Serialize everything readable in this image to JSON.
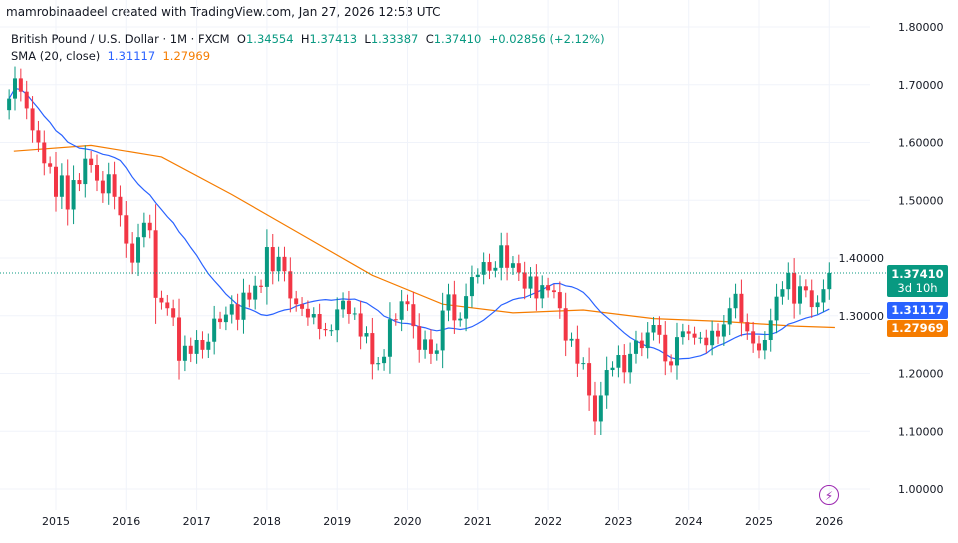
{
  "attribution": "mamrobinaadeel created with TradingView.com, Jan 27, 2026 12:53 UTC",
  "legend": {
    "symbol": "British Pound / U.S. Dollar · 1M · FXCM",
    "o_label": "O",
    "o": "1.34554",
    "h_label": "H",
    "h": "1.37413",
    "l_label": "L",
    "l": "1.33387",
    "c_label": "C",
    "c": "1.37410",
    "change": "+0.02856 (+2.12%)",
    "sma_label": "SMA (20, close)",
    "sma1": "1.31117",
    "sma2": "1.27969"
  },
  "tags": {
    "price": "1.37410",
    "countdown": "3d 10h",
    "sma1": "1.31117",
    "sma2": "1.27969"
  },
  "icons": {
    "alert": "lightning-icon"
  },
  "colors": {
    "up": "#089981",
    "down": "#f23645",
    "sma1": "#2962ff",
    "sma2": "#f57c00"
  },
  "chart_data": {
    "type": "candlestick",
    "start": "2014-05",
    "interval": "1M",
    "closes": [
      1.676,
      1.711,
      1.688,
      1.659,
      1.621,
      1.6,
      1.564,
      1.558,
      1.506,
      1.543,
      1.484,
      1.535,
      1.528,
      1.572,
      1.561,
      1.534,
      1.512,
      1.545,
      1.506,
      1.474,
      1.425,
      1.392,
      1.436,
      1.461,
      1.448,
      1.331,
      1.323,
      1.313,
      1.297,
      1.222,
      1.248,
      1.234,
      1.258,
      1.241,
      1.255,
      1.295,
      1.289,
      1.302,
      1.32,
      1.293,
      1.34,
      1.328,
      1.352,
      1.35,
      1.419,
      1.377,
      1.402,
      1.377,
      1.33,
      1.32,
      1.312,
      1.297,
      1.303,
      1.277,
      1.275,
      1.275,
      1.311,
      1.326,
      1.303,
      1.304,
      1.264,
      1.27,
      1.216,
      1.218,
      1.229,
      1.294,
      1.293,
      1.325,
      1.32,
      1.282,
      1.241,
      1.259,
      1.234,
      1.24,
      1.309,
      1.337,
      1.292,
      1.295,
      1.334,
      1.367,
      1.371,
      1.393,
      1.378,
      1.383,
      1.422,
      1.383,
      1.391,
      1.375,
      1.347,
      1.368,
      1.33,
      1.353,
      1.344,
      1.341,
      1.313,
      1.257,
      1.26,
      1.217,
      1.218,
      1.162,
      1.117,
      1.162,
      1.206,
      1.21,
      1.232,
      1.202,
      1.234,
      1.257,
      1.244,
      1.271,
      1.284,
      1.267,
      1.221,
      1.214,
      1.263,
      1.273,
      1.269,
      1.262,
      1.262,
      1.249,
      1.274,
      1.264,
      1.285,
      1.313,
      1.338,
      1.289,
      1.273,
      1.252,
      1.24,
      1.258,
      1.292,
      1.333,
      1.346,
      1.374,
      1.321,
      1.351,
      1.344,
      1.315,
      1.323,
      1.346,
      1.3741
    ],
    "sma2_points": [
      [
        2014.4,
        1.585
      ],
      [
        2015.5,
        1.595
      ],
      [
        2016.5,
        1.575
      ],
      [
        2017.5,
        1.51
      ],
      [
        2018.5,
        1.44
      ],
      [
        2019.5,
        1.37
      ],
      [
        2020.5,
        1.32
      ],
      [
        2021.5,
        1.305
      ],
      [
        2022.5,
        1.31
      ],
      [
        2023.5,
        1.295
      ],
      [
        2024.5,
        1.29
      ],
      [
        2025.5,
        1.282
      ],
      [
        2026.08,
        1.2797
      ]
    ],
    "x_ticks": [
      "2015",
      "2016",
      "2017",
      "2018",
      "2019",
      "2020",
      "2021",
      "2022",
      "2023",
      "2024",
      "2025",
      "2026"
    ],
    "y_ticks": [
      "1.00000",
      "1.10000",
      "1.20000",
      "1.30000",
      "1.40000",
      "1.50000",
      "1.60000",
      "1.70000",
      "1.80000"
    ],
    "ylim": [
      1.0,
      1.8
    ]
  }
}
